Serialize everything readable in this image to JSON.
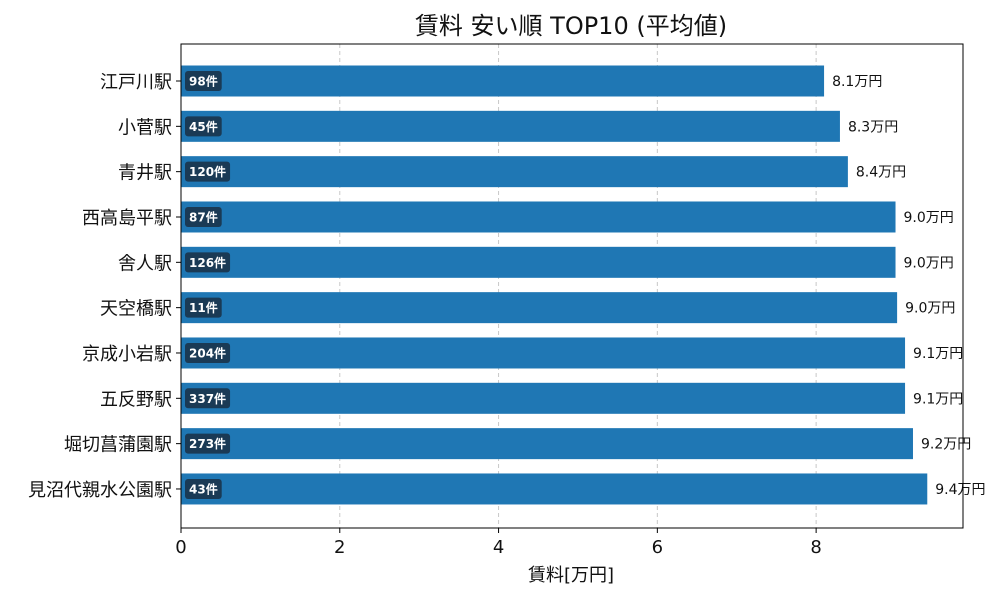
{
  "chart_data": {
    "type": "bar",
    "orientation": "horizontal",
    "title": "賃料 安い順 TOP10 (平均値)",
    "xlabel": "賃料[万円]",
    "ylabel": "",
    "xlim": [
      0,
      9.85
    ],
    "xticks": [
      "0",
      "2",
      "4",
      "6",
      "8"
    ],
    "grid": "vertical dashed",
    "color": "#1f77b4",
    "badge_color": "#1a3a55",
    "categories": [
      "江戸川駅",
      "小菅駅",
      "青井駅",
      "西高島平駅",
      "舎人駅",
      "天空橋駅",
      "京成小岩駅",
      "五反野駅",
      "堀切菖蒲園駅",
      "見沼代親水公園駅"
    ],
    "values": [
      8.1,
      8.3,
      8.4,
      9.0,
      9.0,
      9.02,
      9.12,
      9.12,
      9.22,
      9.4
    ],
    "value_labels": [
      "8.1万円",
      "8.3万円",
      "8.4万円",
      "9.0万円",
      "9.0万円",
      "9.0万円",
      "9.1万円",
      "9.1万円",
      "9.2万円",
      "9.4万円"
    ],
    "count_labels": [
      "98件",
      "45件",
      "120件",
      "87件",
      "126件",
      "11件",
      "204件",
      "337件",
      "273件",
      "43件"
    ]
  }
}
